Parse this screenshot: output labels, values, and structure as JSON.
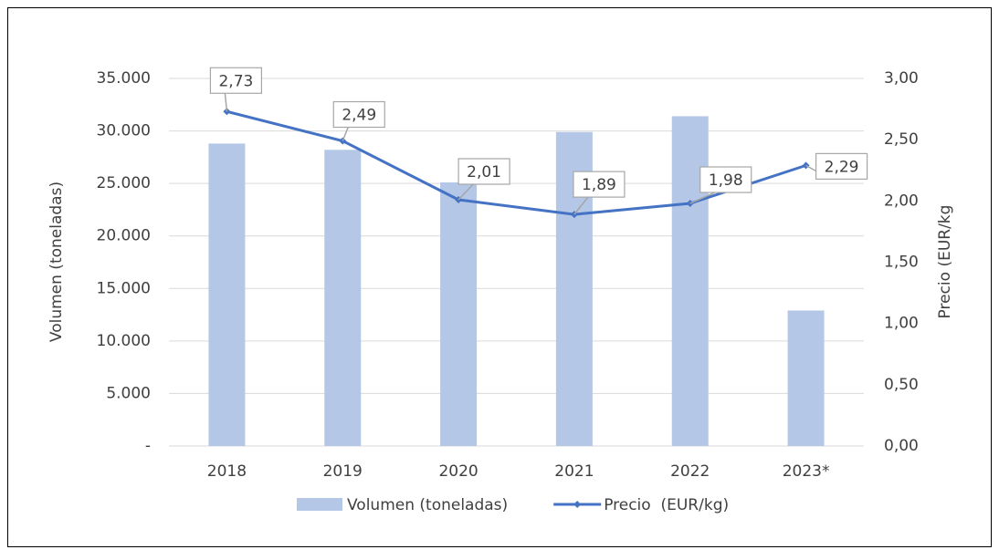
{
  "chart_data": {
    "type": "bar_line",
    "categories": [
      "2018",
      "2019",
      "2020",
      "2021",
      "2022",
      "2023*"
    ],
    "series": [
      {
        "name": "Volumen (toneladas)",
        "type": "bar",
        "color": "#b4c7e7",
        "values": [
          28800,
          28200,
          25100,
          29900,
          31400,
          12900
        ]
      },
      {
        "name": "Precio  (EUR/kg)",
        "type": "line",
        "axis": "y2",
        "color": "#4472c4",
        "values": [
          2.73,
          2.49,
          2.01,
          1.89,
          1.98,
          2.29
        ],
        "value_labels": [
          "2,73",
          "2,49",
          "2,01",
          "1,89",
          "1,98",
          "2,29"
        ]
      }
    ],
    "ylabel": "Volumen (toneladas)",
    "y2label": "Precio (EUR/kg",
    "ylim": [
      0,
      35000
    ],
    "yticks": [
      {
        "value": 0,
        "label": "-"
      },
      {
        "value": 5000,
        "label": "5.000"
      },
      {
        "value": 10000,
        "label": "10.000"
      },
      {
        "value": 15000,
        "label": "15.000"
      },
      {
        "value": 20000,
        "label": "20.000"
      },
      {
        "value": 25000,
        "label": "25.000"
      },
      {
        "value": 30000,
        "label": "30.000"
      },
      {
        "value": 35000,
        "label": "35.000"
      }
    ],
    "y2lim": [
      0,
      3
    ],
    "y2ticks": [
      {
        "value": 0,
        "label": "0,00"
      },
      {
        "value": 0.5,
        "label": "0,50"
      },
      {
        "value": 1,
        "label": "1,00"
      },
      {
        "value": 1.5,
        "label": "1,50"
      },
      {
        "value": 2,
        "label": "2,00"
      },
      {
        "value": 2.5,
        "label": "2,50"
      },
      {
        "value": 3,
        "label": "3,00"
      }
    ],
    "grid": true,
    "legend": "bottom"
  }
}
